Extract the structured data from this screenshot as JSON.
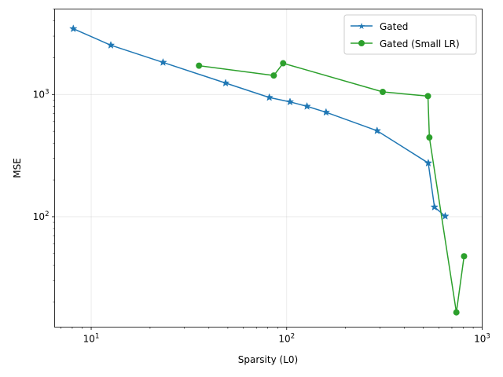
{
  "chart_data": {
    "type": "line",
    "title": "",
    "xlabel": "Sparsity (L0)",
    "ylabel": "MSE",
    "xscale": "log",
    "yscale": "log",
    "xlim": [
      6.5,
      1000
    ],
    "ylim": [
      12.5,
      5000
    ],
    "x_ticks": [
      {
        "value": 10,
        "base": "10",
        "exp": "1"
      },
      {
        "value": 100,
        "base": "10",
        "exp": "2"
      },
      {
        "value": 1000,
        "base": "10",
        "exp": "3"
      }
    ],
    "y_ticks": [
      {
        "value": 100,
        "base": "10",
        "exp": "2"
      },
      {
        "value": 1000,
        "base": "10",
        "exp": "3"
      }
    ],
    "grid": true,
    "legend_position": "upper-right",
    "series": [
      {
        "name": "Gated",
        "color": "#1f77b4",
        "marker": "star",
        "x": [
          8.1,
          12.6,
          23.3,
          48.7,
          81.5,
          104,
          127,
          159,
          290,
          530,
          570,
          647
        ],
        "y": [
          3450,
          2530,
          1830,
          1240,
          945,
          870,
          800,
          715,
          505,
          275,
          120,
          101
        ]
      },
      {
        "name": "Gated (Small LR)",
        "color": "#2ca02c",
        "marker": "circle",
        "x": [
          35.6,
          85.9,
          95.9,
          310,
          528,
          537,
          738,
          808
        ],
        "y": [
          1720,
          1430,
          1800,
          1050,
          970,
          445,
          16.5,
          47.5
        ]
      }
    ]
  }
}
